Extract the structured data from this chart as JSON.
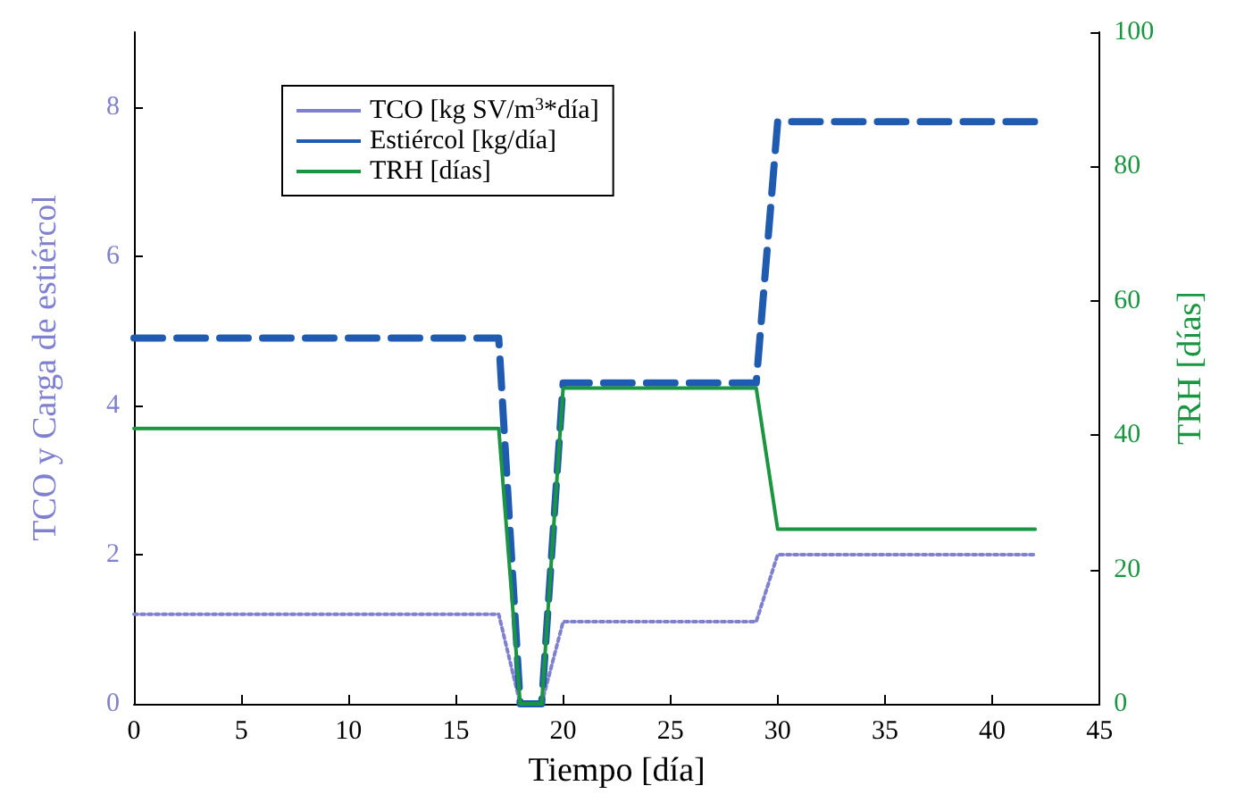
{
  "chart_data": {
    "type": "line",
    "xlabel": "Tiempo [día]",
    "ylabel": "TCO y Carga de estiércol",
    "y2label": "TRH [días]",
    "x": [
      0,
      17,
      18,
      19,
      20,
      29,
      30,
      42
    ],
    "xlim": [
      0,
      45
    ],
    "xticks": [
      0,
      5,
      10,
      15,
      20,
      25,
      30,
      35,
      40,
      45
    ],
    "ylim": [
      0,
      9
    ],
    "yticks": [
      0,
      2,
      4,
      6,
      8
    ],
    "y2lim": [
      0,
      100
    ],
    "y2ticks": [
      0,
      20,
      40,
      60,
      80,
      100
    ],
    "grid": false,
    "legend": "top left",
    "marker": "none",
    "series": [
      {
        "name": "TCO [kg SV/m$^{3}$*día]",
        "color": "#8080d0",
        "line_style": "dotted",
        "values": [
          1.2,
          1.2,
          0,
          0,
          1.1,
          1.1,
          2,
          2
        ]
      },
      {
        "name": "Estiércol [kg/día]",
        "color": "#1f5bb0",
        "line_style": "dashed",
        "values": [
          4.9,
          4.9,
          0,
          0,
          4.3,
          4.3,
          7.8,
          7.8
        ]
      },
      {
        "name": "TRH [días]",
        "color": "#1a9641",
        "line_style": "solid",
        "axis": "y2",
        "values": [
          41,
          41,
          0,
          0,
          47,
          47,
          26,
          26
        ]
      }
    ]
  }
}
